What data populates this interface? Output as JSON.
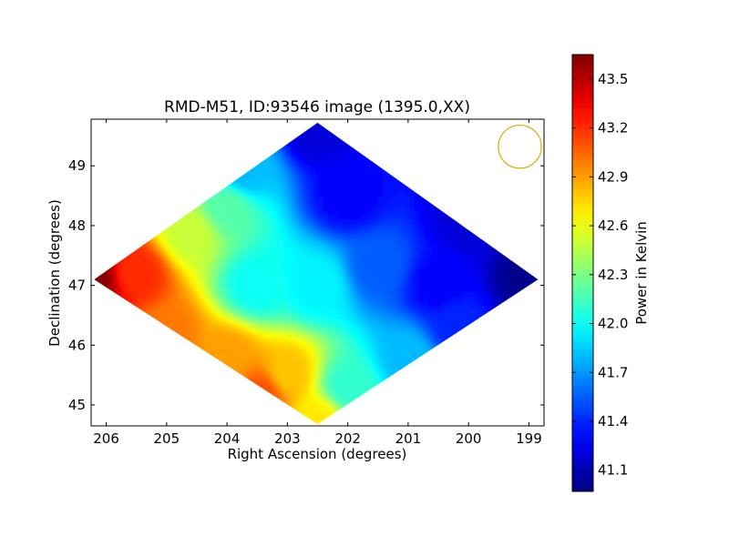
{
  "chart_data": {
    "type": "heatmap",
    "title": "RMD-M51, ID:93546 image (1395.0,XX)",
    "xlabel": "Right Ascension (degrees)",
    "ylabel": "Declination (degrees)",
    "xlim": [
      206.25,
      198.75
    ],
    "ylim": [
      44.65,
      49.78
    ],
    "x_ticks": [
      206,
      205,
      204,
      203,
      202,
      201,
      200,
      199
    ],
    "y_ticks": [
      45,
      46,
      47,
      48,
      49
    ],
    "x_tick_labels": [
      "206",
      "205",
      "204",
      "203",
      "202",
      "201",
      "200",
      "199"
    ],
    "y_tick_labels": [
      "45",
      "46",
      "47",
      "48",
      "49"
    ],
    "grid": false,
    "beam_circle": {
      "ra": 199.15,
      "dec": 49.32,
      "radius_deg": 0.36
    },
    "colorbar": {
      "label": "Power in Kelvin",
      "min": 40.97,
      "max": 43.65,
      "ticks": [
        41.1,
        41.4,
        41.7,
        42.0,
        42.3,
        42.6,
        42.9,
        43.2,
        43.5
      ],
      "tick_labels": [
        "41.1",
        "41.4",
        "41.7",
        "42.0",
        "42.3",
        "42.6",
        "42.9",
        "43.2",
        "43.5"
      ],
      "colormap": "jet"
    },
    "map_footprint": [
      [
        206.2,
        47.1
      ],
      [
        202.5,
        49.72
      ],
      [
        198.85,
        47.1
      ],
      [
        202.5,
        44.68
      ]
    ],
    "anchor_values": [
      {
        "ra": 206.2,
        "dec": 47.1,
        "value": 43.63
      },
      {
        "ra": 205.5,
        "dec": 47.2,
        "value": 43.2
      },
      {
        "ra": 205.0,
        "dec": 46.2,
        "value": 43.0
      },
      {
        "ra": 204.0,
        "dec": 45.8,
        "value": 42.9
      },
      {
        "ra": 203.4,
        "dec": 45.2,
        "value": 43.1
      },
      {
        "ra": 203.0,
        "dec": 45.5,
        "value": 42.8
      },
      {
        "ra": 202.5,
        "dec": 44.75,
        "value": 42.7
      },
      {
        "ra": 202.0,
        "dec": 45.3,
        "value": 42.1
      },
      {
        "ra": 201.0,
        "dec": 45.8,
        "value": 41.8
      },
      {
        "ra": 200.2,
        "dec": 46.3,
        "value": 41.4
      },
      {
        "ra": 204.6,
        "dec": 47.9,
        "value": 42.5
      },
      {
        "ra": 204.0,
        "dec": 48.3,
        "value": 42.2
      },
      {
        "ra": 203.7,
        "dec": 48.9,
        "value": 41.8
      },
      {
        "ra": 203.5,
        "dec": 47.0,
        "value": 42.0
      },
      {
        "ra": 202.5,
        "dec": 47.0,
        "value": 41.95
      },
      {
        "ra": 202.5,
        "dec": 49.6,
        "value": 41.2
      },
      {
        "ra": 202.0,
        "dec": 48.5,
        "value": 41.3
      },
      {
        "ra": 201.5,
        "dec": 47.3,
        "value": 41.55
      },
      {
        "ra": 200.5,
        "dec": 47.0,
        "value": 41.3
      },
      {
        "ra": 200.0,
        "dec": 48.1,
        "value": 41.2
      },
      {
        "ra": 199.0,
        "dec": 47.1,
        "value": 41.0
      }
    ]
  }
}
